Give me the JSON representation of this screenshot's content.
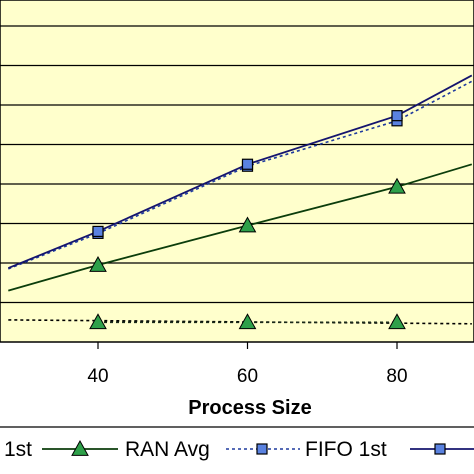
{
  "chart_data": {
    "type": "line",
    "xlabel": "Process Size",
    "x_ticks": [
      40,
      60,
      80
    ],
    "xlim": [
      28,
      90
    ],
    "ylim": [
      0,
      80
    ],
    "y_gridlines": [
      10,
      20,
      30,
      40,
      50,
      60,
      70,
      80
    ],
    "grid": true,
    "legend_position": "bottom",
    "series": [
      {
        "legend": "1st",
        "marker": "none",
        "dash": "dotted",
        "color": "#000000",
        "x": [
          28,
          90
        ],
        "y": [
          5.6,
          4.6
        ]
      },
      {
        "legend": "",
        "marker": "triangle",
        "dash": "dotted",
        "color": "#1a2a1a",
        "x": [
          40,
          60,
          80
        ],
        "y": [
          5.0,
          5.0,
          5.0
        ]
      },
      {
        "legend": "RAN Avg",
        "marker": "triangle",
        "dash": "solid",
        "color": "#0b3d0b",
        "x": [
          28,
          40,
          60,
          80,
          90
        ],
        "y": [
          13.0,
          19.5,
          29.5,
          39.3,
          45.0
        ]
      },
      {
        "legend": "FIFO 1st",
        "marker": "square",
        "dash": "dotted",
        "color": "#1e3a9e",
        "x": [
          28,
          40,
          60,
          80,
          90
        ],
        "y": [
          18.5,
          27.5,
          44.5,
          56.0,
          66.0
        ]
      },
      {
        "legend": "",
        "marker": "square",
        "dash": "solid",
        "color": "#14146e",
        "x": [
          28,
          40,
          60,
          80,
          90
        ],
        "y": [
          18.7,
          28.0,
          45.0,
          57.3,
          67.5
        ]
      }
    ]
  },
  "colors": {
    "plot_background": "#ffffcc",
    "triangle_fill": "#2ea04a",
    "square_fill": "#5a82e0"
  }
}
